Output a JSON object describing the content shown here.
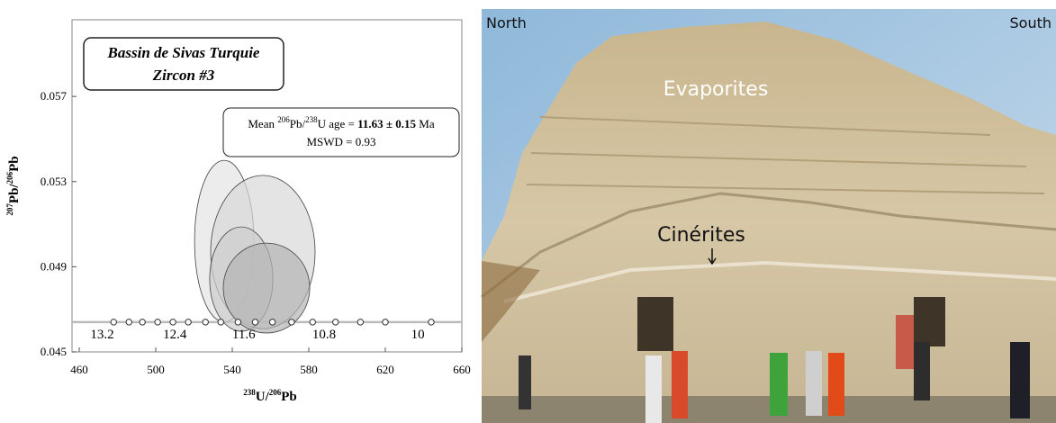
{
  "chart_data": {
    "type": "concordia",
    "title_lines": [
      "Bassin de Sivas Turquie",
      "Zircon #3"
    ],
    "annotation": {
      "parts": [
        "Mean ",
        "206",
        "Pb/",
        "238",
        "U age = ",
        "11.63 ± 0.15",
        " Ma"
      ],
      "mswd": "MSWD = 0.93"
    },
    "x_label": {
      "parts": [
        "238",
        "U/",
        "206",
        "Pb"
      ]
    },
    "y_label": {
      "parts": [
        "207",
        "Pb/",
        "206",
        "Pb"
      ]
    },
    "xlim": [
      460,
      660
    ],
    "ylim": [
      0.045,
      0.0606
    ],
    "xticks": [
      460,
      500,
      540,
      580,
      620,
      660
    ],
    "yticks": [
      0.045,
      0.049,
      0.053,
      0.057
    ],
    "concordia_y": 0.0464,
    "concordia_points": [
      478,
      486,
      493,
      501,
      509,
      517,
      526,
      534,
      543,
      552,
      561,
      571,
      582,
      594,
      607,
      620,
      644
    ],
    "age_labels": [
      {
        "value": 472,
        "label": "13.2"
      },
      {
        "value": 510,
        "label": "12.4"
      },
      {
        "value": 546,
        "label": "11.6"
      },
      {
        "value": 588,
        "label": "10.8"
      },
      {
        "value": 637,
        "label": "10"
      }
    ],
    "ellipses": [
      {
        "x": 535.8,
        "y": 0.0502,
        "sx": 15.5,
        "sy": 0.0038,
        "color": "#e4e4e4"
      },
      {
        "x": 556.0,
        "y": 0.04969,
        "sx": 27.3,
        "sy": 0.0036,
        "color": "#d9d9d9"
      },
      {
        "x": 544.7,
        "y": 0.04842,
        "sx": 16.5,
        "sy": 0.00245,
        "color": "#cdcdcd"
      },
      {
        "x": 557.9,
        "y": 0.048,
        "sx": 22.6,
        "sy": 0.00211,
        "color": "#b4b4b4"
      }
    ]
  },
  "photo": {
    "north": "North",
    "south": "South",
    "upper_unit": "Evaporites",
    "lower_unit": "Cinérites"
  }
}
